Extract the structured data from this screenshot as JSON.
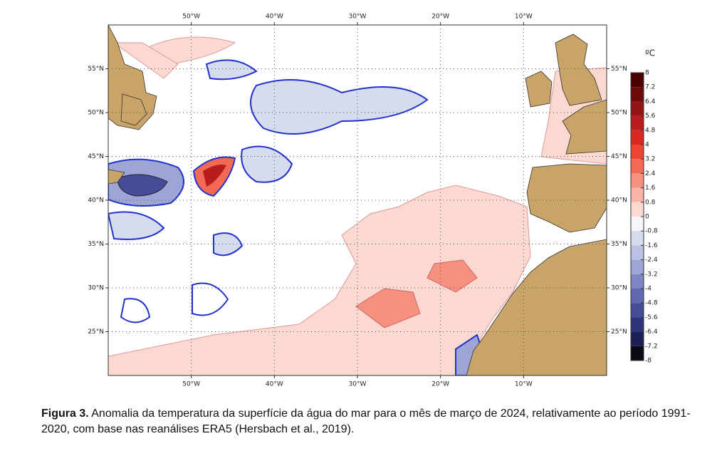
{
  "map": {
    "xlim": [
      -60,
      0
    ],
    "ylim": [
      20,
      60
    ],
    "xticks": [
      {
        "value": -50,
        "label": "50°W"
      },
      {
        "value": -40,
        "label": "40°W"
      },
      {
        "value": -30,
        "label": "30°W"
      },
      {
        "value": -20,
        "label": "20°W"
      },
      {
        "value": -10,
        "label": "10°W"
      }
    ],
    "yticks": [
      {
        "value": 55,
        "label": "55°N"
      },
      {
        "value": 50,
        "label": "50°N"
      },
      {
        "value": 45,
        "label": "45°N"
      },
      {
        "value": 40,
        "label": "40°N"
      },
      {
        "value": 35,
        "label": "35°N"
      },
      {
        "value": 30,
        "label": "30°N"
      },
      {
        "value": 25,
        "label": "25°N"
      }
    ],
    "grid": true
  },
  "colorbar": {
    "unit": "ºC",
    "ticks": [
      8,
      7.2,
      6.4,
      5.6,
      4.8,
      4,
      3.2,
      2.4,
      1.6,
      0.8,
      0,
      -0.8,
      -1.6,
      -2.4,
      -3.2,
      -4,
      -4.8,
      -5.6,
      -6.4,
      -7.2,
      -8
    ],
    "colors": [
      "#4a0000",
      "#6e0a0a",
      "#951515",
      "#b81c1c",
      "#d82a20",
      "#ee4433",
      "#f26a55",
      "#f5917e",
      "#f8b4a8",
      "#fbd8d0",
      "#f6f6fa",
      "#d6dbee",
      "#bac1e2",
      "#9ca5d4",
      "#7e87c4",
      "#6169b0",
      "#454d98",
      "#2f357a",
      "#1c2056",
      "#0a0a14"
    ]
  },
  "caption": {
    "label": "Figura 3.",
    "text": "Anomalia da temperatura da superfície da água do mar para o mês de março de 2024, relativamente ao período 1991-2020, com base nas reanálises ERA5 (Hersbach et al., 2019)."
  }
}
